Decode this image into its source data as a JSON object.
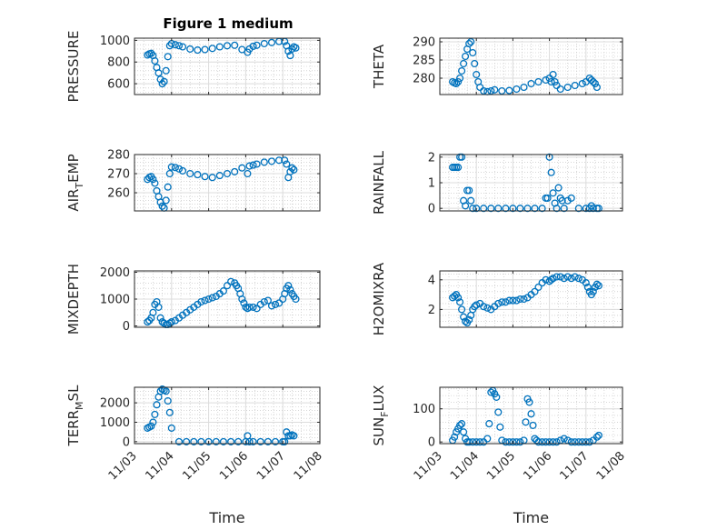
{
  "figure": {
    "title": "Figure 1 medium"
  },
  "colors": {
    "marker": "#0072BD",
    "axes": "#262626",
    "grid": "#bdbdbd"
  },
  "chart_data": [
    {
      "type": "scatter",
      "ylabel": "PRESSURE",
      "ylim": [
        500,
        1020
      ],
      "yticks": [
        600,
        800,
        1000
      ],
      "x": [
        3.35,
        3.4,
        3.45,
        3.5,
        3.55,
        3.6,
        3.65,
        3.7,
        3.75,
        3.8,
        3.85,
        3.9,
        3.95,
        4.0,
        4.1,
        4.2,
        4.3,
        4.5,
        4.7,
        4.9,
        5.1,
        5.3,
        5.5,
        5.7,
        5.9,
        6.05,
        6.1,
        6.2,
        6.3,
        6.5,
        6.7,
        6.9,
        7.05,
        7.1,
        7.15,
        7.2,
        7.25,
        7.3,
        7.35
      ],
      "y": [
        865,
        875,
        880,
        860,
        810,
        750,
        700,
        640,
        600,
        620,
        720,
        850,
        950,
        970,
        960,
        950,
        940,
        920,
        910,
        915,
        925,
        940,
        950,
        955,
        915,
        890,
        920,
        945,
        955,
        970,
        980,
        990,
        990,
        950,
        900,
        860,
        920,
        940,
        930
      ]
    },
    {
      "type": "scatter",
      "ylabel": "THETA",
      "ylim": [
        275.5,
        291
      ],
      "yticks": [
        280,
        285,
        290
      ],
      "x": [
        3.35,
        3.4,
        3.45,
        3.5,
        3.55,
        3.6,
        3.65,
        3.7,
        3.75,
        3.8,
        3.85,
        3.9,
        3.95,
        4.0,
        4.05,
        4.1,
        4.2,
        4.3,
        4.4,
        4.5,
        4.7,
        4.9,
        5.1,
        5.3,
        5.5,
        5.7,
        5.9,
        6.0,
        6.05,
        6.1,
        6.15,
        6.2,
        6.3,
        6.5,
        6.7,
        6.9,
        7.0,
        7.1,
        7.15,
        7.2,
        7.25,
        7.3
      ],
      "y": [
        279,
        278.7,
        278.5,
        279,
        280,
        282,
        284,
        286,
        288,
        289.5,
        290,
        287,
        284,
        281,
        279,
        277.5,
        276.5,
        276.3,
        276.5,
        276.8,
        276.5,
        276.6,
        277,
        277.5,
        278.5,
        279,
        279.5,
        280,
        279,
        281,
        279,
        278,
        277,
        277.5,
        278,
        278.5,
        279,
        280,
        279.5,
        279,
        278.5,
        277.5
      ]
    },
    {
      "type": "scatter",
      "ylabel": "AIR_TEMP",
      "ylim": [
        250.5,
        280
      ],
      "yticks": [
        260,
        270,
        280
      ],
      "x": [
        3.35,
        3.4,
        3.45,
        3.5,
        3.55,
        3.6,
        3.65,
        3.7,
        3.75,
        3.8,
        3.85,
        3.9,
        3.95,
        4.0,
        4.1,
        4.2,
        4.3,
        4.5,
        4.7,
        4.9,
        5.1,
        5.3,
        5.5,
        5.7,
        5.9,
        6.05,
        6.1,
        6.2,
        6.3,
        6.5,
        6.7,
        6.9,
        7.05,
        7.1,
        7.15,
        7.2,
        7.25,
        7.3
      ],
      "y": [
        267,
        268,
        268.5,
        267,
        265,
        261,
        258,
        255,
        253,
        252,
        256,
        263,
        270,
        273.5,
        273.2,
        272.5,
        271.5,
        270,
        269.5,
        268.5,
        268,
        269,
        270,
        271,
        273,
        270,
        274,
        274.5,
        275,
        276,
        276.5,
        277,
        277,
        275,
        268,
        271,
        273,
        272
      ]
    },
    {
      "type": "scatter",
      "ylabel": "RAINFALL",
      "ylim": [
        -0.1,
        2.1
      ],
      "yticks": [
        0,
        1,
        2
      ],
      "x": [
        3.35,
        3.4,
        3.45,
        3.5,
        3.55,
        3.6,
        3.65,
        3.7,
        3.75,
        3.8,
        3.85,
        3.9,
        4.0,
        4.2,
        4.4,
        4.6,
        4.8,
        5.0,
        5.2,
        5.4,
        5.6,
        5.8,
        5.9,
        5.95,
        6.0,
        6.05,
        6.1,
        6.15,
        6.2,
        6.25,
        6.3,
        6.35,
        6.4,
        6.5,
        6.6,
        6.8,
        7.0,
        7.1,
        7.15,
        7.2,
        7.3,
        7.35
      ],
      "y": [
        1.6,
        1.6,
        1.6,
        1.6,
        2.0,
        2.0,
        0.3,
        0.1,
        0.7,
        0.7,
        0.3,
        0,
        0,
        0,
        0,
        0,
        0,
        0,
        0,
        0,
        0,
        0,
        0.4,
        0.4,
        2.0,
        1.4,
        0.6,
        0.2,
        0,
        0.8,
        0.4,
        0.3,
        0,
        0.3,
        0.4,
        0,
        0,
        0,
        0.1,
        0,
        0,
        0
      ]
    },
    {
      "type": "scatter",
      "ylabel": "MIXDEPTH",
      "ylim": [
        -50,
        2050
      ],
      "yticks": [
        0,
        1000,
        2000
      ],
      "x": [
        3.35,
        3.4,
        3.45,
        3.5,
        3.55,
        3.6,
        3.65,
        3.7,
        3.75,
        3.8,
        3.85,
        3.9,
        3.95,
        4.0,
        4.1,
        4.2,
        4.3,
        4.4,
        4.5,
        4.6,
        4.7,
        4.8,
        4.9,
        5.0,
        5.1,
        5.2,
        5.3,
        5.4,
        5.5,
        5.6,
        5.7,
        5.75,
        5.8,
        5.85,
        5.9,
        5.95,
        6.0,
        6.05,
        6.1,
        6.2,
        6.3,
        6.4,
        6.5,
        6.6,
        6.7,
        6.8,
        6.9,
        7.0,
        7.05,
        7.1,
        7.15,
        7.2,
        7.25,
        7.3,
        7.35
      ],
      "y": [
        150,
        200,
        300,
        500,
        800,
        900,
        700,
        300,
        150,
        100,
        50,
        50,
        100,
        150,
        200,
        300,
        400,
        500,
        600,
        700,
        800,
        900,
        950,
        1000,
        1050,
        1100,
        1200,
        1300,
        1500,
        1650,
        1600,
        1500,
        1400,
        1200,
        1000,
        850,
        700,
        650,
        700,
        700,
        650,
        800,
        900,
        950,
        750,
        800,
        850,
        1000,
        1200,
        1400,
        1500,
        1350,
        1200,
        1100,
        1000
      ]
    },
    {
      "type": "scatter",
      "ylabel": "H2OMIXRA",
      "ylim": [
        0.8,
        4.6
      ],
      "yticks": [
        2,
        4
      ],
      "x": [
        3.35,
        3.4,
        3.45,
        3.5,
        3.55,
        3.6,
        3.65,
        3.7,
        3.75,
        3.8,
        3.85,
        3.9,
        3.95,
        4.0,
        4.1,
        4.2,
        4.3,
        4.4,
        4.5,
        4.6,
        4.7,
        4.8,
        4.9,
        5.0,
        5.1,
        5.2,
        5.3,
        5.4,
        5.5,
        5.6,
        5.7,
        5.8,
        5.9,
        6.0,
        6.05,
        6.1,
        6.2,
        6.3,
        6.4,
        6.5,
        6.6,
        6.7,
        6.8,
        6.9,
        7.0,
        7.05,
        7.1,
        7.15,
        7.2,
        7.25,
        7.3,
        7.35
      ],
      "y": [
        2.8,
        2.9,
        3.0,
        2.8,
        2.5,
        2.0,
        1.5,
        1.2,
        1.1,
        1.3,
        1.6,
        2.0,
        2.2,
        2.3,
        2.4,
        2.2,
        2.1,
        2.0,
        2.2,
        2.4,
        2.5,
        2.5,
        2.6,
        2.6,
        2.6,
        2.7,
        2.7,
        2.8,
        3.0,
        3.2,
        3.5,
        3.8,
        4.0,
        3.9,
        4.0,
        4.1,
        4.2,
        4.2,
        4.1,
        4.2,
        4.1,
        4.2,
        4.1,
        4.0,
        3.8,
        3.5,
        3.2,
        3.0,
        3.2,
        3.5,
        3.7,
        3.6
      ]
    },
    {
      "type": "scatter",
      "ylabel": "TERR_MSL",
      "ylim": [
        -100,
        2800
      ],
      "yticks": [
        0,
        1000,
        2000
      ],
      "x": [
        3.35,
        3.4,
        3.45,
        3.5,
        3.55,
        3.6,
        3.65,
        3.7,
        3.75,
        3.8,
        3.85,
        3.9,
        3.95,
        4.0,
        4.2,
        4.4,
        4.6,
        4.8,
        5.0,
        5.2,
        5.4,
        5.6,
        5.8,
        6.0,
        6.05,
        6.1,
        6.2,
        6.4,
        6.6,
        6.8,
        7.0,
        7.05,
        7.1,
        7.15,
        7.2,
        7.25,
        7.3
      ],
      "y": [
        700,
        750,
        800,
        1000,
        1400,
        1900,
        2300,
        2600,
        2700,
        2650,
        2600,
        2100,
        1500,
        700,
        0,
        0,
        0,
        0,
        0,
        0,
        0,
        0,
        0,
        0,
        300,
        0,
        0,
        0,
        0,
        0,
        0,
        0,
        500,
        300,
        300,
        350,
        300
      ]
    },
    {
      "type": "scatter",
      "ylabel": "SUN_FLUX",
      "ylim": [
        -5,
        165
      ],
      "yticks": [
        0,
        100
      ],
      "x": [
        3.35,
        3.4,
        3.45,
        3.5,
        3.55,
        3.6,
        3.65,
        3.7,
        3.75,
        3.8,
        3.9,
        4.0,
        4.1,
        4.2,
        4.3,
        4.35,
        4.4,
        4.45,
        4.5,
        4.55,
        4.6,
        4.65,
        4.7,
        4.8,
        4.9,
        5.0,
        5.1,
        5.2,
        5.3,
        5.35,
        5.4,
        5.45,
        5.5,
        5.55,
        5.6,
        5.65,
        5.7,
        5.8,
        5.9,
        6.0,
        6.1,
        6.2,
        6.3,
        6.4,
        6.5,
        6.6,
        6.7,
        6.8,
        6.9,
        7.0,
        7.1,
        7.2,
        7.3,
        7.35
      ],
      "y": [
        5,
        15,
        30,
        40,
        50,
        55,
        30,
        10,
        0,
        0,
        0,
        0,
        0,
        0,
        10,
        55,
        150,
        155,
        145,
        135,
        90,
        45,
        5,
        0,
        0,
        0,
        0,
        0,
        5,
        60,
        130,
        120,
        85,
        50,
        10,
        5,
        0,
        0,
        0,
        0,
        0,
        0,
        5,
        10,
        5,
        0,
        0,
        0,
        0,
        0,
        0,
        5,
        15,
        20
      ]
    }
  ],
  "shared_x": {
    "label": "Time",
    "lim": [
      3,
      8
    ],
    "ticks": [
      3,
      4,
      5,
      6,
      7,
      8
    ],
    "tick_labels": [
      "11/03",
      "11/04",
      "11/05",
      "11/06",
      "11/07",
      "11/08"
    ]
  }
}
